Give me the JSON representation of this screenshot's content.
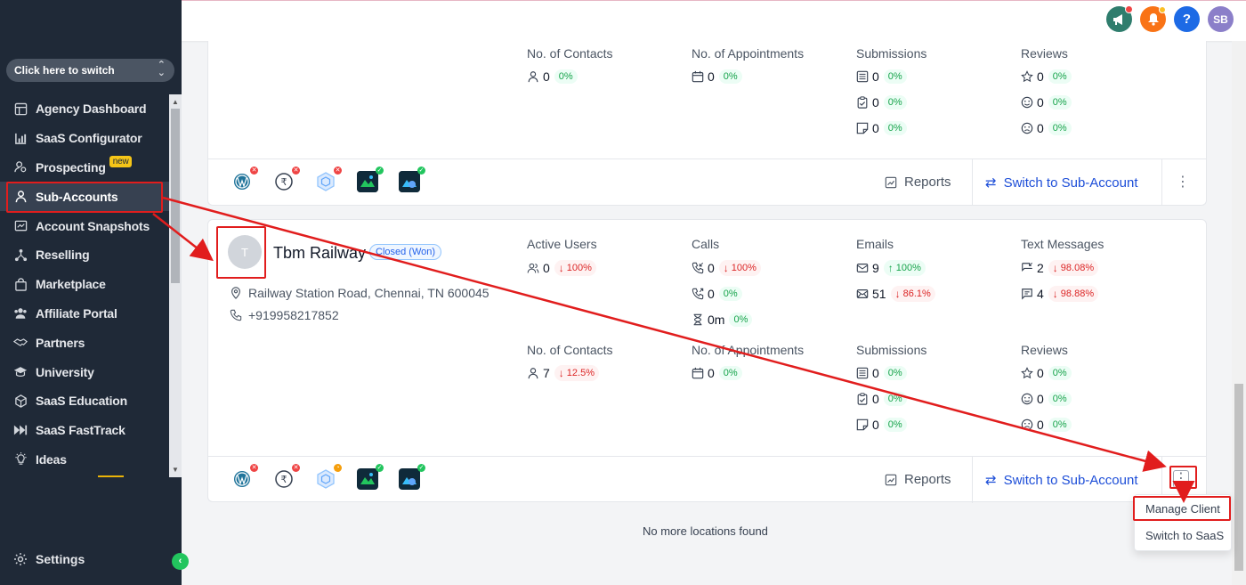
{
  "sidebar": {
    "switcher_label": "Click here to switch",
    "items": [
      {
        "label": "Agency Dashboard",
        "icon": "dashboard-icon"
      },
      {
        "label": "SaaS Configurator",
        "icon": "chart-icon"
      },
      {
        "label": "Prospecting",
        "icon": "prospecting-icon",
        "badge": "new"
      },
      {
        "label": "Sub-Accounts",
        "icon": "user-icon",
        "active": true
      },
      {
        "label": "Account Snapshots",
        "icon": "snapshot-icon"
      },
      {
        "label": "Reselling",
        "icon": "reselling-icon"
      },
      {
        "label": "Marketplace",
        "icon": "bag-icon"
      },
      {
        "label": "Affiliate Portal",
        "icon": "users-icon"
      },
      {
        "label": "Partners",
        "icon": "handshake-icon"
      },
      {
        "label": "University",
        "icon": "graduation-icon"
      },
      {
        "label": "SaaS Education",
        "icon": "cube-icon"
      },
      {
        "label": "SaaS FastTrack",
        "icon": "fastforward-icon"
      },
      {
        "label": "Ideas",
        "icon": "bulb-icon"
      }
    ],
    "settings_label": "Settings"
  },
  "topbar": {
    "user_initials": "SB",
    "help_label": "?"
  },
  "card1": {
    "metrics": [
      {
        "title": "No. of Contacts",
        "rows": [
          {
            "icon": "user-icon",
            "value": "0",
            "pct": "0%",
            "trend": "none"
          }
        ]
      },
      {
        "title": "No. of Appointments",
        "rows": [
          {
            "icon": "calendar-icon",
            "value": "0",
            "pct": "0%",
            "trend": "none"
          }
        ]
      },
      {
        "title": "Submissions",
        "rows": [
          {
            "icon": "form-icon",
            "value": "0",
            "pct": "0%",
            "trend": "none"
          },
          {
            "icon": "clipboard-icon",
            "value": "0",
            "pct": "0%",
            "trend": "none"
          },
          {
            "icon": "survey-icon",
            "value": "0",
            "pct": "0%",
            "trend": "none"
          }
        ]
      },
      {
        "title": "Reviews",
        "rows": [
          {
            "icon": "star-icon",
            "value": "0",
            "pct": "0%",
            "trend": "none"
          },
          {
            "icon": "smile-icon",
            "value": "0",
            "pct": "0%",
            "trend": "none"
          },
          {
            "icon": "frown-icon",
            "value": "0",
            "pct": "0%",
            "trend": "none"
          }
        ]
      }
    ],
    "reports_label": "Reports",
    "switch_label": "Switch to Sub-Account"
  },
  "card2": {
    "avatar_initial": "T",
    "name": "Tbm Railway",
    "status": "Closed (Won)",
    "address": "Railway Station Road, Chennai, TN 600045",
    "phone": "+919958217852",
    "metrics_top": [
      {
        "title": "Active Users",
        "rows": [
          {
            "icon": "users-icon",
            "value": "0",
            "pct": "100%",
            "trend": "down"
          }
        ]
      },
      {
        "title": "Calls",
        "rows": [
          {
            "icon": "phone-in-icon",
            "value": "0",
            "pct": "100%",
            "trend": "down"
          },
          {
            "icon": "phone-out-icon",
            "value": "0",
            "pct": "0%",
            "trend": "none"
          },
          {
            "icon": "hourglass-icon",
            "value": "0m",
            "pct": "0%",
            "trend": "none"
          }
        ]
      },
      {
        "title": "Emails",
        "rows": [
          {
            "icon": "mail-icon",
            "value": "9",
            "pct": "100%",
            "trend": "up"
          },
          {
            "icon": "mail-open-icon",
            "value": "51",
            "pct": "86.1%",
            "trend": "down"
          }
        ]
      },
      {
        "title": "Text Messages",
        "rows": [
          {
            "icon": "sms-in-icon",
            "value": "2",
            "pct": "98.08%",
            "trend": "down"
          },
          {
            "icon": "sms-out-icon",
            "value": "4",
            "pct": "98.88%",
            "trend": "down"
          }
        ]
      }
    ],
    "metrics_bottom": [
      {
        "title": "No. of Contacts",
        "rows": [
          {
            "icon": "user-icon",
            "value": "7",
            "pct": "12.5%",
            "trend": "down"
          }
        ]
      },
      {
        "title": "No. of Appointments",
        "rows": [
          {
            "icon": "calendar-icon",
            "value": "0",
            "pct": "0%",
            "trend": "none"
          }
        ]
      },
      {
        "title": "Submissions",
        "rows": [
          {
            "icon": "form-icon",
            "value": "0",
            "pct": "0%",
            "trend": "none"
          },
          {
            "icon": "clipboard-icon",
            "value": "0",
            "pct": "0%",
            "trend": "none"
          },
          {
            "icon": "survey-icon",
            "value": "0",
            "pct": "0%",
            "trend": "none"
          }
        ]
      },
      {
        "title": "Reviews",
        "rows": [
          {
            "icon": "star-icon",
            "value": "0",
            "pct": "0%",
            "trend": "none"
          },
          {
            "icon": "smile-icon",
            "value": "0",
            "pct": "0%",
            "trend": "none"
          },
          {
            "icon": "frown-icon",
            "value": "0",
            "pct": "0%",
            "trend": "none"
          }
        ]
      }
    ],
    "reports_label": "Reports",
    "switch_label": "Switch to Sub-Account"
  },
  "app_icons": [
    {
      "icon": "wordpress-icon",
      "status": "error"
    },
    {
      "icon": "rupee-icon",
      "status": "error"
    },
    {
      "icon": "hexagon-icon",
      "status": "error"
    },
    {
      "icon": "app-green-icon",
      "status": "ok"
    },
    {
      "icon": "app-blue-icon",
      "status": "ok"
    }
  ],
  "app_icons_card2_status": [
    "error",
    "error",
    "pending",
    "ok",
    "ok"
  ],
  "footer_text": "No more locations found",
  "dropdown": {
    "items": [
      "Manage Client",
      "Switch to SaaS"
    ]
  },
  "colors": {
    "sidebar_bg": "#1f2937",
    "accent_blue": "#1d4ed8",
    "positive": "#16a34a",
    "negative": "#dc2626",
    "annotation": "#e11d1d"
  }
}
